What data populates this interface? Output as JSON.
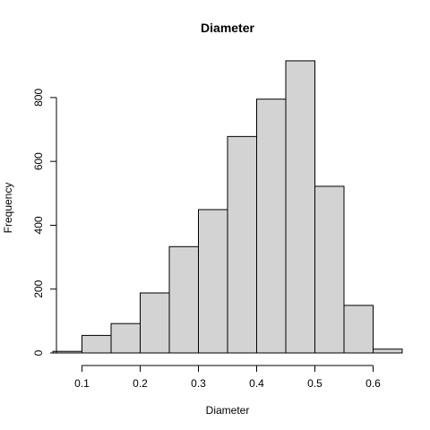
{
  "chart_data": {
    "type": "bar",
    "title": "Diameter",
    "xlabel": "Diameter",
    "ylabel": "Frequency",
    "bins": [
      {
        "from": 0.05,
        "to": 0.1,
        "count": 5
      },
      {
        "from": 0.1,
        "to": 0.15,
        "count": 55
      },
      {
        "from": 0.15,
        "to": 0.2,
        "count": 92
      },
      {
        "from": 0.2,
        "to": 0.25,
        "count": 188
      },
      {
        "from": 0.25,
        "to": 0.3,
        "count": 333
      },
      {
        "from": 0.3,
        "to": 0.35,
        "count": 449
      },
      {
        "from": 0.35,
        "to": 0.4,
        "count": 678
      },
      {
        "from": 0.4,
        "to": 0.45,
        "count": 795
      },
      {
        "from": 0.45,
        "to": 0.5,
        "count": 915
      },
      {
        "from": 0.5,
        "to": 0.55,
        "count": 522
      },
      {
        "from": 0.55,
        "to": 0.6,
        "count": 149
      },
      {
        "from": 0.6,
        "to": 0.65,
        "count": 12
      }
    ],
    "xlim": [
      0.05,
      0.65
    ],
    "ylim": [
      0,
      940
    ],
    "x_ticks": [
      "0.1",
      "0.2",
      "0.3",
      "0.4",
      "0.5",
      "0.6"
    ],
    "y_ticks": [
      "0",
      "200",
      "400",
      "600",
      "800"
    ],
    "bar_color": "#d3d3d3",
    "grid": false,
    "legend": "none"
  }
}
